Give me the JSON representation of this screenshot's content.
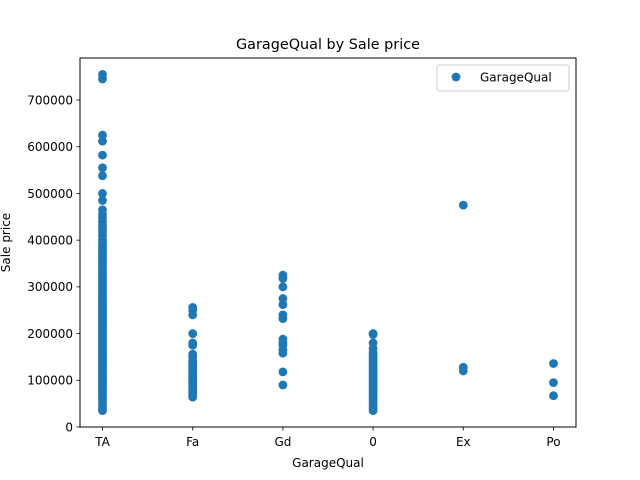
{
  "chart_data": {
    "type": "scatter",
    "title": "GarageQual by Sale price",
    "xlabel": "GarageQual",
    "ylabel": "Sale price",
    "categories": [
      "TA",
      "Fa",
      "Gd",
      "0",
      "Ex",
      "Po"
    ],
    "ylim": [
      0,
      790000
    ],
    "yticks": [
      0,
      100000,
      200000,
      300000,
      400000,
      500000,
      600000,
      700000
    ],
    "ytick_labels": [
      "0",
      "100000",
      "200000",
      "300000",
      "400000",
      "500000",
      "600000",
      "700000"
    ],
    "grid": false,
    "legend_position": "top-right",
    "series": [
      {
        "name": "GarageQual",
        "color": "#1f77b4",
        "points": {
          "TA": [
            35000,
            40000,
            45000,
            52000,
            58000,
            62000,
            67000,
            72000,
            76000,
            80000,
            84000,
            88000,
            92000,
            96000,
            100000,
            104000,
            108000,
            112000,
            116000,
            120000,
            124000,
            128000,
            132000,
            136000,
            140000,
            144000,
            148000,
            152000,
            156000,
            160000,
            164000,
            168000,
            172000,
            176000,
            180000,
            184000,
            188000,
            192000,
            196000,
            200000,
            204000,
            208000,
            212000,
            216000,
            220000,
            224000,
            228000,
            232000,
            236000,
            240000,
            244000,
            248000,
            252000,
            256000,
            260000,
            264000,
            268000,
            272000,
            276000,
            280000,
            285000,
            290000,
            295000,
            300000,
            305000,
            310000,
            315000,
            320000,
            325000,
            330000,
            335000,
            340000,
            345000,
            350000,
            355000,
            360000,
            365000,
            370000,
            375000,
            380000,
            385000,
            390000,
            395000,
            402000,
            410000,
            418000,
            425000,
            432000,
            440000,
            448000,
            455000,
            465000,
            485000,
            500000,
            538000,
            555000,
            582000,
            612000,
            625000,
            745000,
            755000
          ],
          "Fa": [
            64000,
            67000,
            70000,
            74000,
            78000,
            82000,
            86000,
            90000,
            94000,
            98000,
            102000,
            106000,
            110000,
            114000,
            118000,
            122000,
            126000,
            130000,
            134000,
            138000,
            142000,
            150000,
            156000,
            175000,
            180000,
            200000,
            240000,
            250000,
            256000
          ],
          "Gd": [
            90000,
            118000,
            158000,
            165000,
            175000,
            180000,
            188000,
            232000,
            240000,
            262000,
            275000,
            300000,
            318000,
            325000
          ],
          "0": [
            35000,
            40000,
            45000,
            50000,
            55000,
            60000,
            65000,
            70000,
            75000,
            80000,
            85000,
            90000,
            95000,
            100000,
            105000,
            110000,
            115000,
            120000,
            125000,
            130000,
            135000,
            140000,
            145000,
            150000,
            155000,
            160000,
            168000,
            180000,
            198000,
            200000
          ],
          "Ex": [
            120000,
            128000,
            475000
          ],
          "Po": [
            67000,
            95000,
            136000
          ]
        }
      }
    ]
  }
}
